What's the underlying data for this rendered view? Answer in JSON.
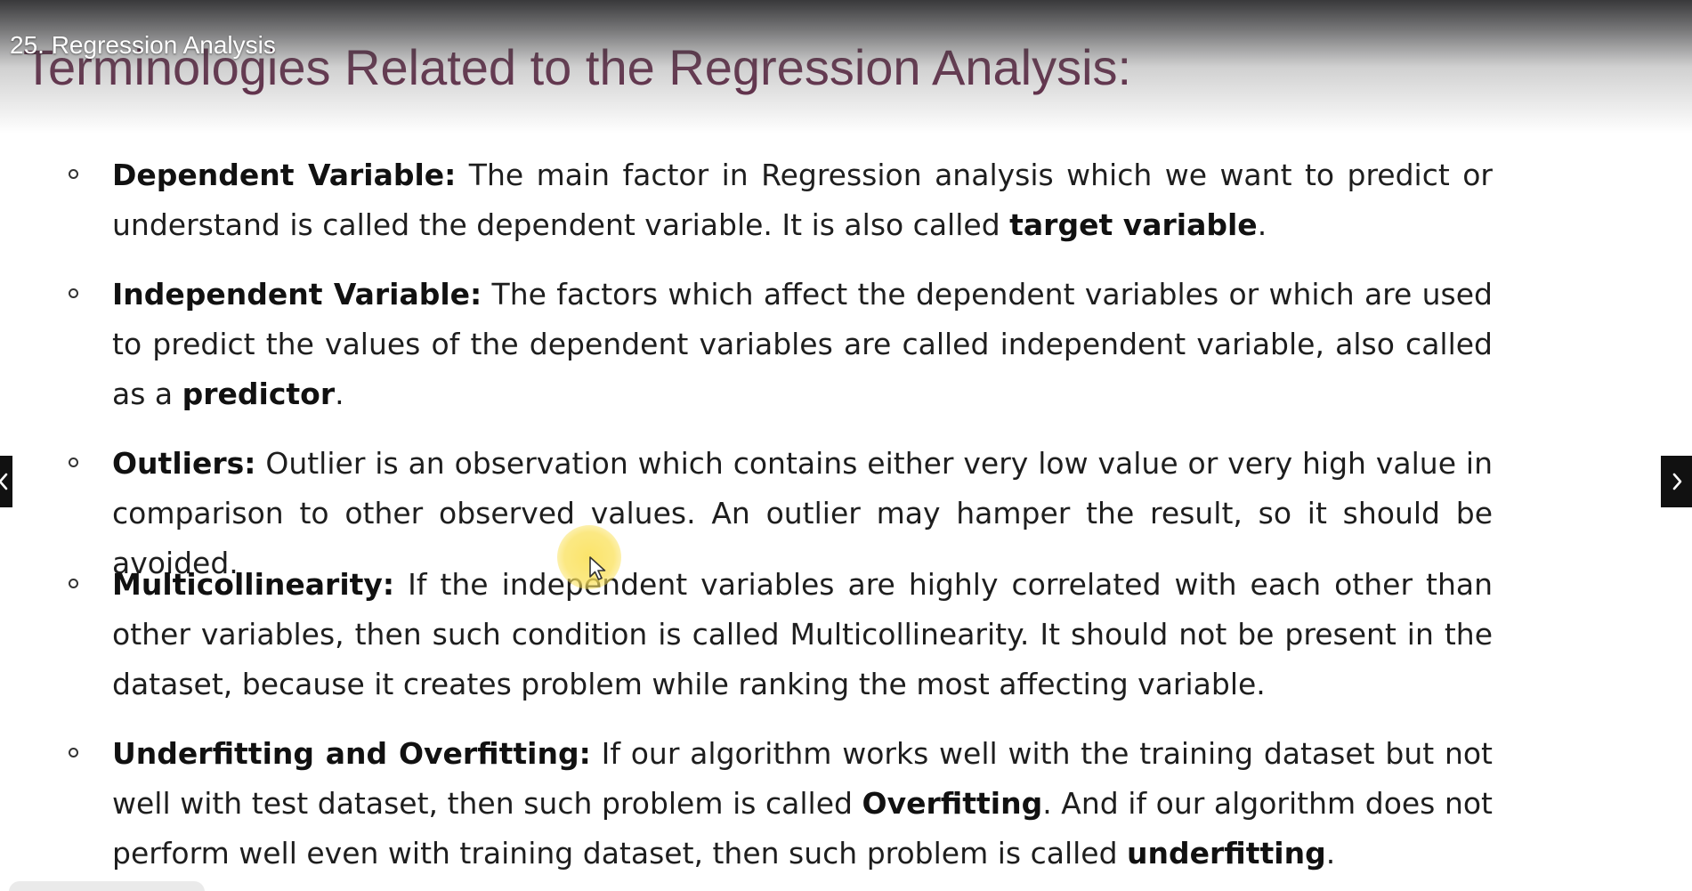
{
  "video": {
    "title": "25. Regression Analysis"
  },
  "slide": {
    "heading": "Terminologies Related to the Regression Analysis:",
    "items": [
      {
        "segments": [
          {
            "text": "Dependent Variable:",
            "bold": true
          },
          {
            "text": " The main factor in Regression analysis which we want to predict or understand is called the dependent variable. It is also called ",
            "bold": false
          },
          {
            "text": "target variable",
            "bold": true
          },
          {
            "text": ".",
            "bold": false
          }
        ]
      },
      {
        "segments": [
          {
            "text": "Independent Variable:",
            "bold": true
          },
          {
            "text": " The factors which affect the dependent variables or which are used to predict the values of the dependent variables are called independent variable, also called as a ",
            "bold": false
          },
          {
            "text": "predictor",
            "bold": true
          },
          {
            "text": ".",
            "bold": false
          }
        ]
      },
      {
        "segments": [
          {
            "text": "Outliers:",
            "bold": true
          },
          {
            "text": " Outlier is an observation which contains either very low value or very high value in comparison to other observed values. An outlier may hamper the result, so it should be avoided.",
            "bold": false
          }
        ]
      },
      {
        "segments": [
          {
            "text": "Multicollinearity:",
            "bold": true
          },
          {
            "text": " If the independent variables are highly correlated with each other than other variables, then such condition is called Multicollinearity. It should not be present in the dataset, because it creates problem while ranking the most affecting variable.",
            "bold": false
          }
        ]
      },
      {
        "segments": [
          {
            "text": "Underfitting and Overfitting:",
            "bold": true
          },
          {
            "text": " If our algorithm works well with the training dataset but not well with test dataset, then such problem is called ",
            "bold": false
          },
          {
            "text": "Overfitting",
            "bold": true
          },
          {
            "text": ". And if our algorithm does not perform well even with training dataset, then such problem is called ",
            "bold": false
          },
          {
            "text": "underfitting",
            "bold": true
          },
          {
            "text": ".",
            "bold": false
          }
        ]
      }
    ]
  },
  "navigation": {
    "prev_icon": "chevron-left-icon",
    "next_icon": "chevron-right-icon"
  },
  "colors": {
    "heading": "#5b2040",
    "body_text": "#1e1e1e",
    "cursor_highlight": "#fae15a",
    "nav_background": "#111111"
  }
}
